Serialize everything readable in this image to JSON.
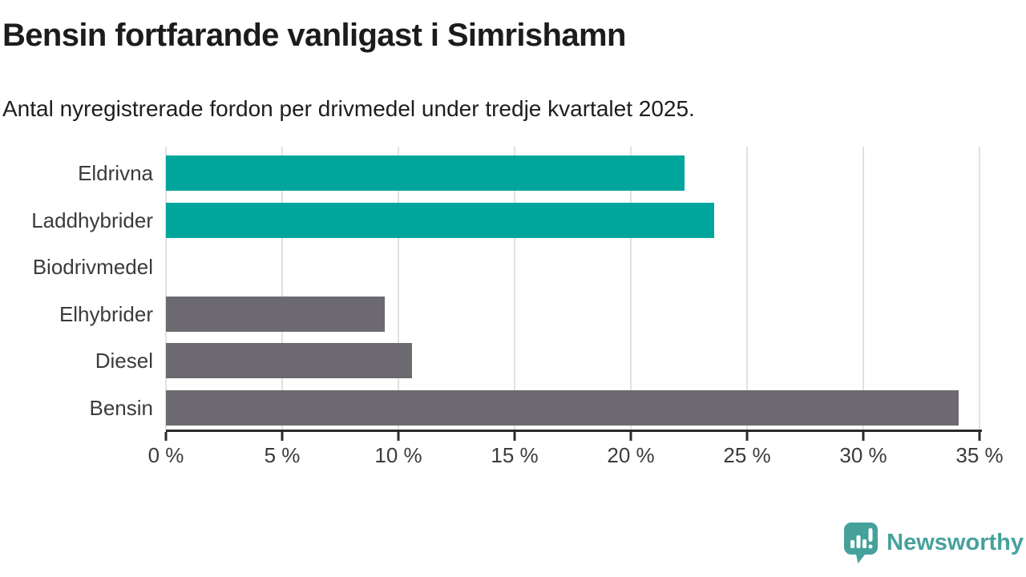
{
  "title": "Bensin fortfarande vanligast i Simrishamn",
  "subtitle": "Antal nyregistrerade fordon per drivmedel under tredje kvartalet 2025.",
  "chart_data": {
    "type": "bar",
    "orientation": "horizontal",
    "title": "Bensin fortfarande vanligast i Simrishamn",
    "subtitle": "Antal nyregistrerade fordon per drivmedel under tredje kvartalet 2025.",
    "categories": [
      "Eldrivna",
      "Laddhybrider",
      "Biodrivmedel",
      "Elhybrider",
      "Diesel",
      "Bensin"
    ],
    "values": [
      22.3,
      23.6,
      0,
      9.4,
      10.6,
      34.1
    ],
    "unit": "%",
    "xlim": [
      0,
      35.5
    ],
    "x_ticks": [
      0,
      5,
      10,
      15,
      20,
      25,
      30,
      35
    ],
    "x_tick_labels": [
      "0 %",
      "5 %",
      "10 %",
      "15 %",
      "20 %",
      "25 %",
      "30 %",
      "35 %"
    ],
    "bar_colors": [
      "#00a69c",
      "#00a69c",
      "#6c6a70",
      "#6c6a70",
      "#6c6a70",
      "#6c6a70"
    ],
    "highlight_color": "#00a69c",
    "default_color": "#6c6a70",
    "grid": true,
    "legend": "none"
  },
  "footer": {
    "brand": "Newsworthy",
    "brand_color": "#46a19b",
    "logo_icon": "newsworthy-speech-bubble-chart-icon"
  }
}
